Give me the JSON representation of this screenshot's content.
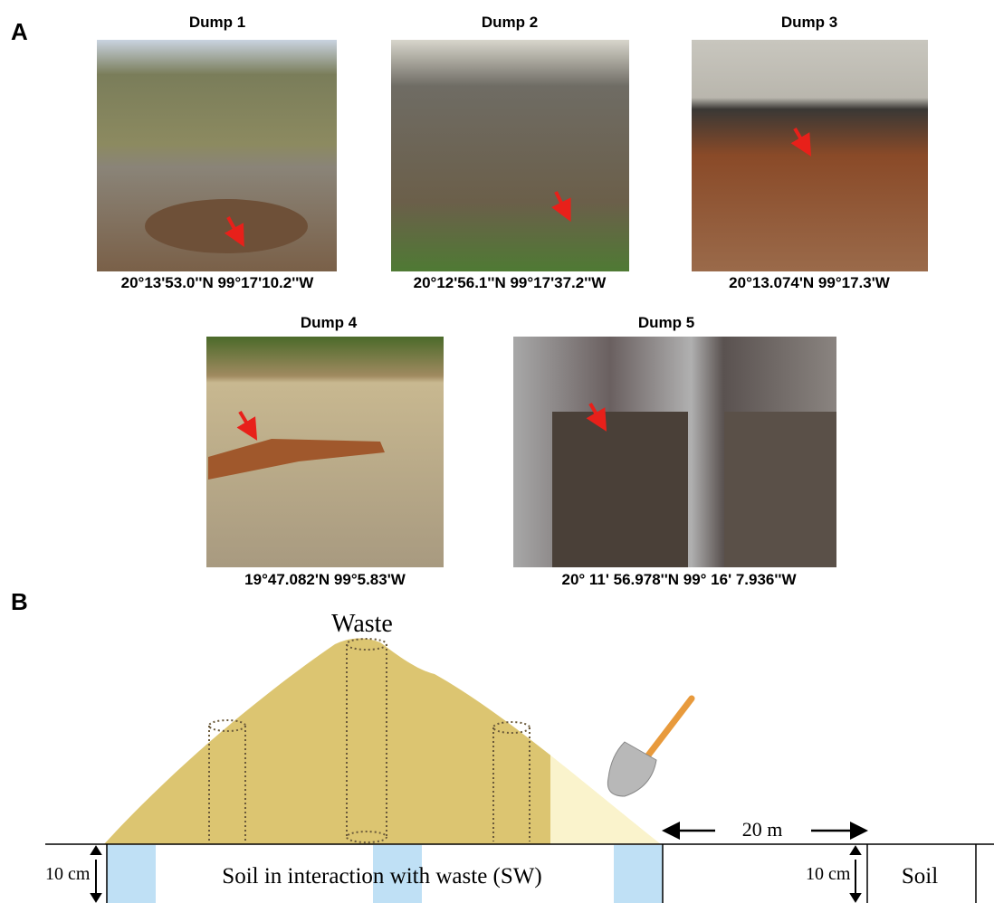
{
  "panels": {
    "a": "A",
    "b": "B"
  },
  "dumps": [
    {
      "title": "Dump 1",
      "coords": "20°13'53.0''N 99°17'10.2''W"
    },
    {
      "title": "Dump 2",
      "coords": "20°12'56.1''N 99°17'37.2''W"
    },
    {
      "title": "Dump 3",
      "coords": "20°13.074'N 99°17.3'W"
    },
    {
      "title": "Dump 4",
      "coords": "19°47.082'N 99°5.83'W"
    },
    {
      "title": "Dump 5",
      "coords": "20° 11' 56.978''N 99° 16' 7.936''W"
    }
  ],
  "diagram": {
    "waste": "Waste",
    "distance": "20 m",
    "depth_left": "10 cm",
    "depth_right": "10 cm",
    "sw_label": "Soil in interaction with waste (SW)",
    "soil_label": "Soil"
  }
}
